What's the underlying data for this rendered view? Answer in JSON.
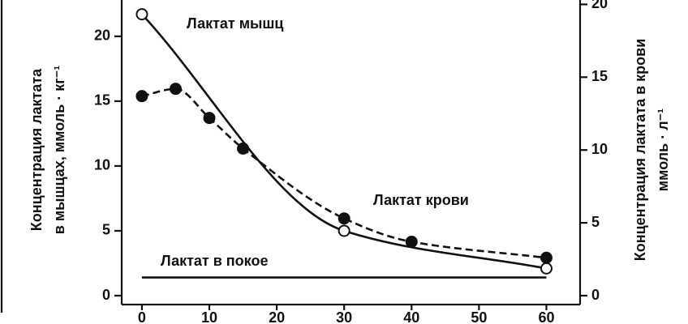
{
  "chart_data": {
    "type": "line",
    "y_label": [
      "Концентрация лактата",
      "в мышцах, ммоль · кг⁻¹"
    ],
    "y2_label": [
      "Концентрация лактата в крови",
      "ммоль · л⁻¹"
    ],
    "xlim": [
      -3,
      65
    ],
    "xticks": [
      0,
      10,
      20,
      30,
      40,
      50,
      60
    ],
    "ylim": [
      0,
      22.8
    ],
    "yticks": [
      0,
      5,
      10,
      15,
      20
    ],
    "y2lim": [
      0,
      20.3
    ],
    "y2ticks": [
      0,
      5,
      10,
      15,
      20
    ],
    "series": [
      {
        "name": "Лактат мышц",
        "axis": "y",
        "color": "#111111",
        "dash": false,
        "marker": "open",
        "x": [
          0,
          30,
          60
        ],
        "values": [
          21.7,
          5.0,
          2.1
        ]
      },
      {
        "name": "Лактат крови",
        "axis": "y2",
        "color": "#111111",
        "dash": true,
        "marker": "filled",
        "x": [
          0,
          5,
          10,
          15,
          30,
          40,
          60
        ],
        "values": [
          13.7,
          14.2,
          12.2,
          10.1,
          5.3,
          3.7,
          2.6
        ]
      },
      {
        "name": "Лактат в покое",
        "axis": "y",
        "color": "#111111",
        "dash": false,
        "marker": "none",
        "x": [
          0,
          60
        ],
        "values": [
          1.4,
          1.4
        ]
      }
    ]
  }
}
